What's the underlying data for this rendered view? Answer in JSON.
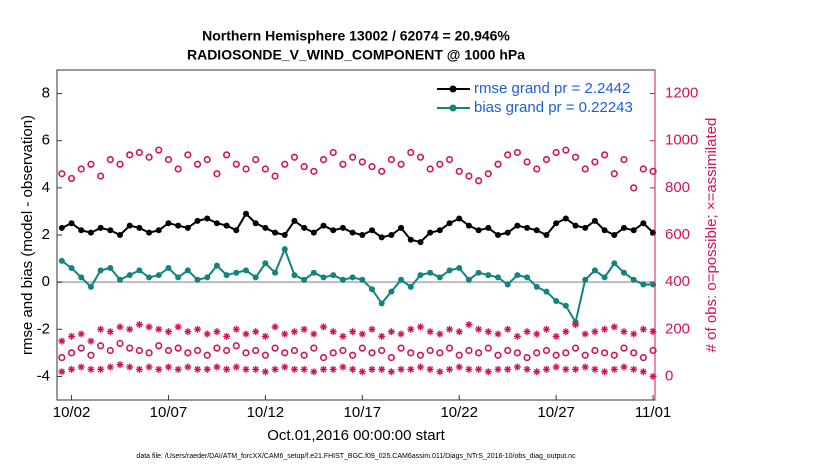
{
  "chart_data": {
    "type": "line",
    "title": "Northern Hemisphere 13002 / 62074 = 20.946%",
    "subtitle": "RADIOSONDE_V_WIND_COMPONENT @ 1000 hPa",
    "xlabel": "Oct.01,2016 00:00:00 start",
    "ylabel": "rmse and bias (model - observation)",
    "y2label": "# of obs: o=possible; ×=assimilated",
    "footer": "data file: /Users/raeder/DAI/ATM_forcXX/CAM6_setup/f.e21.FHIST_BGC.f09_025.CAM6assim.011/Diags_NTrS_2016-10/obs_diag_output.nc",
    "xlim": [
      0.25,
      31.1
    ],
    "xticks": [
      {
        "value": 1,
        "label": "10/02"
      },
      {
        "value": 6,
        "label": "10/07"
      },
      {
        "value": 11,
        "label": "10/12"
      },
      {
        "value": 16,
        "label": "10/17"
      },
      {
        "value": 21,
        "label": "10/22"
      },
      {
        "value": 26,
        "label": "10/27"
      },
      {
        "value": 31,
        "label": "11/01"
      }
    ],
    "ylim": [
      -5,
      9
    ],
    "yticks": [
      -4,
      -2,
      0,
      2,
      4,
      6,
      8
    ],
    "y2lim": [
      -100,
      1300
    ],
    "y2ticks": [
      0,
      200,
      400,
      600,
      800,
      1000,
      1200
    ],
    "grid": false,
    "zero_line": true,
    "legend": "northeast",
    "x": [
      0.5,
      1,
      1.5,
      2,
      2.5,
      3,
      3.5,
      4,
      4.5,
      5,
      5.5,
      6,
      6.5,
      7,
      7.5,
      8,
      8.5,
      9,
      9.5,
      10,
      10.5,
      11,
      11.5,
      12,
      12.5,
      13,
      13.5,
      14,
      14.5,
      15,
      15.5,
      16,
      16.5,
      17,
      17.5,
      18,
      18.5,
      19,
      19.5,
      20,
      20.5,
      21,
      21.5,
      22,
      22.5,
      23,
      23.5,
      24,
      24.5,
      25,
      25.5,
      26,
      26.5,
      27,
      27.5,
      28,
      28.5,
      29,
      29.5,
      30,
      30.5,
      31
    ],
    "series": [
      {
        "name": "rmse grand pr = 2.2442",
        "color": "#000000",
        "marker": "filled",
        "values": [
          2.3,
          2.5,
          2.2,
          2.1,
          2.3,
          2.2,
          2.0,
          2.4,
          2.3,
          2.1,
          2.2,
          2.5,
          2.4,
          2.3,
          2.6,
          2.7,
          2.5,
          2.4,
          2.2,
          2.9,
          2.5,
          2.3,
          2.1,
          2.0,
          2.6,
          2.3,
          2.1,
          2.4,
          2.2,
          2.3,
          2.1,
          2.0,
          2.2,
          1.9,
          2.0,
          2.3,
          1.8,
          1.7,
          2.1,
          2.2,
          2.5,
          2.7,
          2.4,
          2.2,
          2.3,
          2.0,
          2.1,
          2.4,
          2.3,
          2.2,
          2.0,
          2.5,
          2.7,
          2.4,
          2.3,
          2.6,
          2.2,
          2.0,
          2.3,
          2.2,
          2.5,
          2.1
        ]
      },
      {
        "name": "bias grand pr = 0.22243",
        "color": "#11847f",
        "marker": "filled",
        "values": [
          0.9,
          0.6,
          0.2,
          -0.2,
          0.5,
          0.6,
          0.1,
          0.3,
          0.5,
          0.2,
          0.3,
          0.6,
          0.2,
          0.5,
          0.1,
          0.2,
          0.7,
          0.3,
          0.4,
          0.5,
          0.2,
          0.8,
          0.4,
          1.4,
          0.3,
          0.1,
          0.4,
          0.2,
          0.3,
          0.1,
          0.2,
          0.1,
          -0.3,
          -0.9,
          -0.4,
          0.1,
          -0.2,
          0.3,
          0.4,
          0.2,
          0.5,
          0.6,
          0.1,
          0.4,
          0.3,
          0.2,
          -0.1,
          0.3,
          0.2,
          -0.2,
          -0.4,
          -0.8,
          -1.0,
          -1.7,
          0.1,
          0.5,
          0.2,
          0.8,
          0.4,
          0.1,
          -0.1,
          -0.1
        ]
      },
      {
        "color": "#d0145a",
        "marker": "o",
        "axis": "y2",
        "values": [
          860,
          840,
          880,
          900,
          850,
          920,
          900,
          940,
          950,
          930,
          960,
          920,
          880,
          940,
          900,
          920,
          860,
          940,
          900,
          880,
          920,
          880,
          850,
          900,
          930,
          890,
          870,
          920,
          950,
          900,
          930,
          910,
          890,
          870,
          920,
          900,
          950,
          930,
          880,
          900,
          920,
          870,
          850,
          830,
          860,
          900,
          940,
          950,
          910,
          880,
          920,
          950,
          960,
          930,
          880,
          910,
          940,
          860,
          920,
          800,
          880,
          870
        ]
      },
      {
        "color": "#d0145a",
        "marker": "*",
        "axis": "y2",
        "values": [
          150,
          170,
          180,
          150,
          200,
          190,
          210,
          200,
          220,
          210,
          200,
          190,
          210,
          190,
          200,
          180,
          190,
          170,
          200,
          180,
          190,
          170,
          210,
          180,
          190,
          200,
          180,
          210,
          190,
          170,
          190,
          180,
          200,
          170,
          190,
          180,
          200,
          210,
          190,
          180,
          200,
          190,
          220,
          200,
          190,
          180,
          200,
          170,
          190,
          180,
          200,
          170,
          190,
          220,
          180,
          190,
          200,
          210,
          190,
          180,
          200,
          190
        ]
      },
      {
        "color": "#d0145a",
        "marker": "o",
        "axis": "y2",
        "values": [
          80,
          100,
          120,
          90,
          130,
          110,
          140,
          120,
          110,
          100,
          130,
          110,
          120,
          100,
          110,
          90,
          120,
          110,
          130,
          100,
          110,
          90,
          120,
          100,
          110,
          90,
          120,
          80,
          100,
          110,
          90,
          120,
          100,
          110,
          80,
          120,
          100,
          90,
          110,
          100,
          120,
          90,
          110,
          100,
          120,
          90,
          110,
          100,
          80,
          100,
          110,
          90,
          100,
          120,
          90,
          110,
          100,
          90,
          120,
          100,
          80,
          110
        ]
      },
      {
        "color": "#d0145a",
        "marker": "*",
        "axis": "y2",
        "values": [
          20,
          30,
          40,
          30,
          30,
          40,
          50,
          40,
          30,
          40,
          30,
          40,
          30,
          40,
          30,
          30,
          40,
          30,
          40,
          30,
          30,
          20,
          30,
          40,
          30,
          30,
          20,
          30,
          30,
          40,
          30,
          20,
          30,
          30,
          20,
          30,
          30,
          40,
          30,
          20,
          30,
          40,
          30,
          30,
          20,
          30,
          30,
          40,
          30,
          20,
          30,
          40,
          30,
          30,
          40,
          30,
          20,
          30,
          40,
          30,
          20,
          0
        ]
      }
    ]
  }
}
